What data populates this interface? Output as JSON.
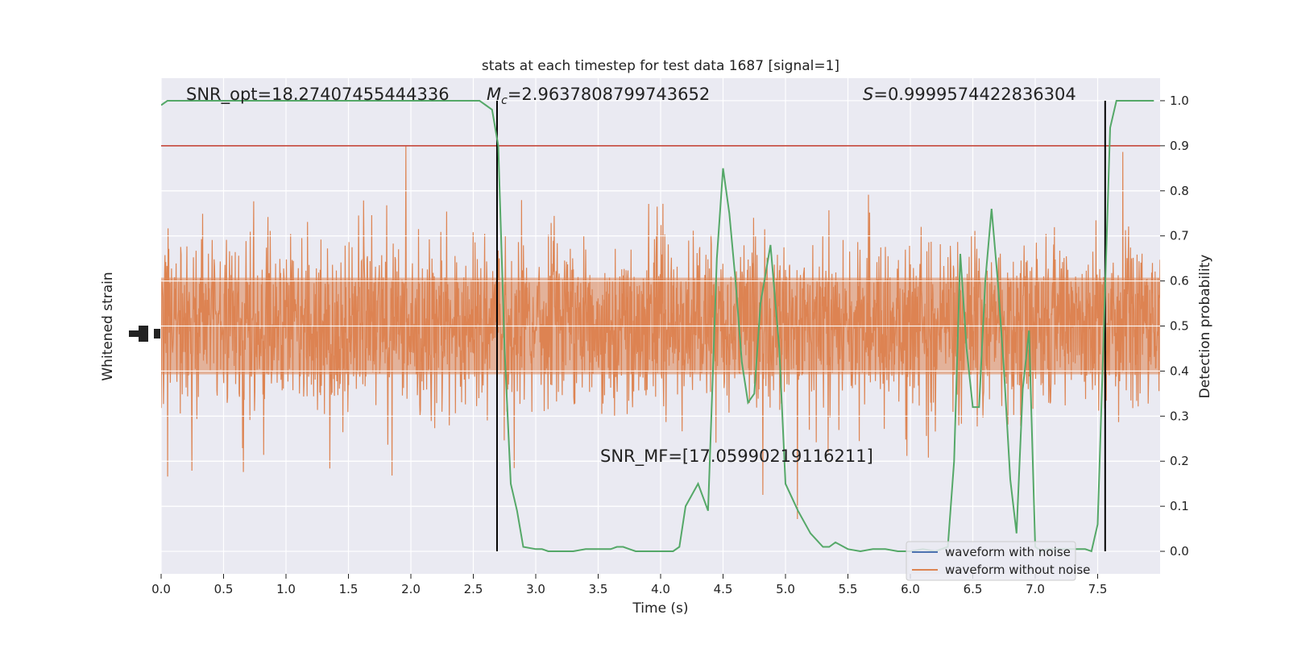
{
  "chart_data": {
    "type": "line",
    "title": "stats at each timestep for test data 1687 [signal=1]",
    "xlabel": "Time (s)",
    "ylabel_left": "Whitened strain",
    "ylabel_right": "Detection probability",
    "xlim": [
      0,
      8
    ],
    "ylim_right": [
      -0.05,
      1.05
    ],
    "x_ticks": [
      0.0,
      0.5,
      1.0,
      1.5,
      2.0,
      2.5,
      3.0,
      3.5,
      4.0,
      4.5,
      5.0,
      5.5,
      6.0,
      6.5,
      7.0,
      7.5
    ],
    "x_tick_labels": [
      "0.0",
      "0.5",
      "1.0",
      "1.5",
      "2.0",
      "2.5",
      "3.0",
      "3.5",
      "4.0",
      "4.5",
      "5.0",
      "5.5",
      "6.0",
      "6.5",
      "7.0",
      "7.5"
    ],
    "y_right_ticks": [
      0.0,
      0.1,
      0.2,
      0.3,
      0.4,
      0.5,
      0.6,
      0.7,
      0.8,
      0.9,
      1.0
    ],
    "y_right_tick_labels": [
      "0.0",
      "0.1",
      "0.2",
      "0.3",
      "0.4",
      "0.5",
      "0.6",
      "0.7",
      "0.8",
      "0.9",
      "1.0"
    ],
    "grid": true,
    "legend_position": "lower-right",
    "annotations": {
      "snr_opt": "SNR_opt=18.27407455444336",
      "mc_symbol": "M",
      "mc_subscript": "c",
      "mc_value": "=2.9637808799743652",
      "s_symbol": "S",
      "s_value": "=0.9999574422836304",
      "snr_mf": "SNR_MF=[17.05990219116211]"
    },
    "threshold": {
      "value": 0.9,
      "color": "#c0392b"
    },
    "vertical_lines": [
      2.69,
      7.56
    ],
    "series": [
      {
        "name": "waveform with noise",
        "color": "#4c72b0"
      },
      {
        "name": "waveform without noise",
        "color": "#dd8452"
      }
    ],
    "probability_curve": {
      "color": "#55a868",
      "x": [
        0.0,
        0.05,
        0.1,
        0.2,
        0.3,
        0.4,
        0.5,
        0.6,
        0.7,
        0.8,
        0.9,
        1.0,
        1.1,
        1.2,
        1.3,
        1.4,
        1.5,
        1.6,
        1.7,
        1.8,
        1.9,
        2.0,
        2.1,
        2.2,
        2.3,
        2.4,
        2.5,
        2.55,
        2.6,
        2.65,
        2.7,
        2.75,
        2.8,
        2.85,
        2.9,
        3.0,
        3.05,
        3.1,
        3.2,
        3.3,
        3.4,
        3.5,
        3.6,
        3.65,
        3.7,
        3.75,
        3.8,
        3.9,
        4.0,
        4.1,
        4.15,
        4.2,
        4.3,
        4.38,
        4.45,
        4.5,
        4.55,
        4.6,
        4.65,
        4.7,
        4.75,
        4.8,
        4.88,
        4.95,
        5.0,
        5.1,
        5.2,
        5.3,
        5.35,
        5.4,
        5.5,
        5.6,
        5.7,
        5.8,
        5.9,
        6.0,
        6.1,
        6.2,
        6.3,
        6.35,
        6.4,
        6.45,
        6.5,
        6.55,
        6.6,
        6.65,
        6.7,
        6.75,
        6.8,
        6.85,
        6.9,
        6.95,
        7.0,
        7.05,
        7.1,
        7.2,
        7.3,
        7.4,
        7.45,
        7.5,
        7.55,
        7.6,
        7.65,
        7.7,
        7.75,
        7.8,
        7.9,
        7.95
      ],
      "y": [
        0.99,
        1.0,
        1.0,
        1.0,
        1.0,
        1.0,
        1.0,
        1.0,
        1.0,
        1.0,
        1.0,
        1.0,
        1.0,
        1.0,
        1.0,
        1.0,
        1.0,
        1.0,
        1.0,
        1.0,
        1.0,
        1.0,
        1.0,
        1.0,
        1.0,
        1.0,
        1.0,
        1.0,
        0.99,
        0.98,
        0.9,
        0.45,
        0.15,
        0.09,
        0.01,
        0.005,
        0.005,
        0.0,
        0.0,
        0.0,
        0.005,
        0.005,
        0.005,
        0.01,
        0.01,
        0.005,
        0.0,
        0.0,
        0.0,
        0.0,
        0.01,
        0.1,
        0.15,
        0.09,
        0.65,
        0.85,
        0.75,
        0.6,
        0.42,
        0.33,
        0.35,
        0.55,
        0.68,
        0.45,
        0.15,
        0.09,
        0.04,
        0.01,
        0.01,
        0.02,
        0.005,
        0.0,
        0.005,
        0.005,
        0.0,
        0.0,
        0.005,
        0.0,
        0.01,
        0.2,
        0.66,
        0.45,
        0.32,
        0.32,
        0.6,
        0.76,
        0.6,
        0.4,
        0.16,
        0.04,
        0.36,
        0.49,
        0.01,
        0.0,
        0.005,
        0.005,
        0.005,
        0.005,
        0.0,
        0.06,
        0.5,
        0.94,
        1.0,
        1.0,
        1.0,
        1.0,
        1.0,
        1.0
      ]
    }
  }
}
